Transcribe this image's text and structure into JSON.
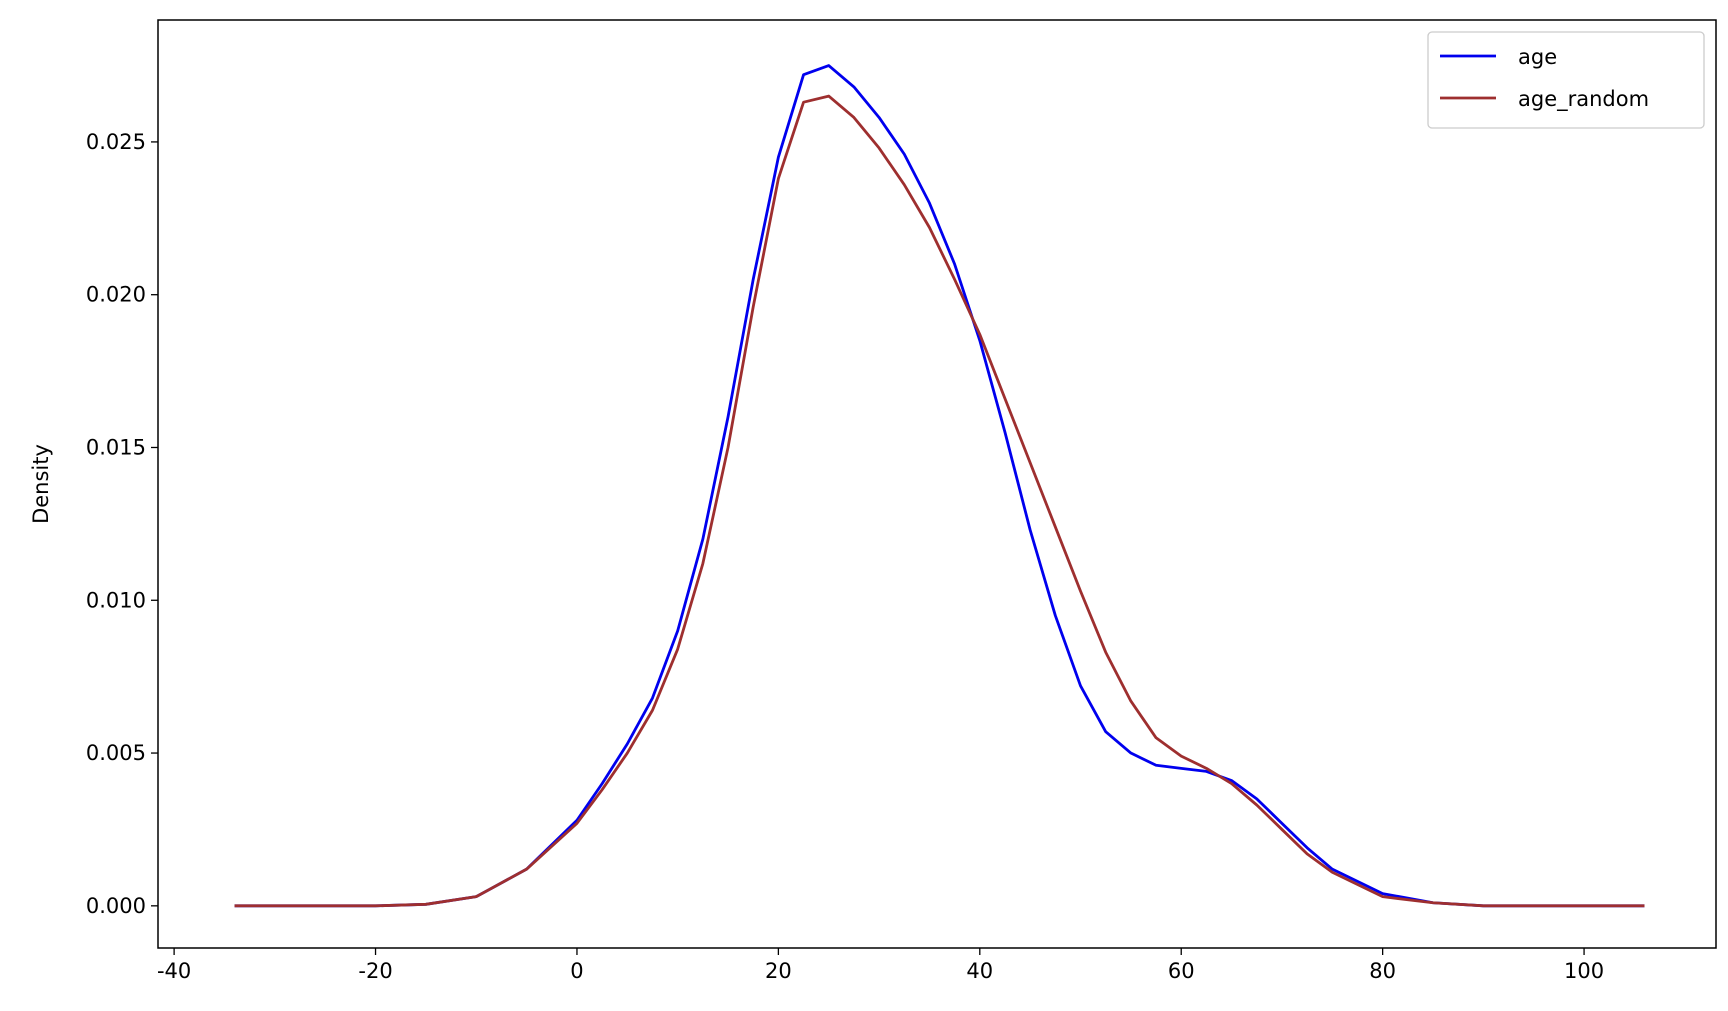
{
  "chart_data": {
    "type": "line",
    "ylabel": "Density",
    "x": [
      -34,
      -30,
      -25,
      -20,
      -15,
      -10,
      -5,
      0,
      2.5,
      5,
      7.5,
      10,
      12.5,
      15,
      17.5,
      20,
      22.5,
      25,
      27.5,
      30,
      32.5,
      35,
      37.5,
      40,
      42.5,
      45,
      47.5,
      50,
      52.5,
      55,
      57.5,
      60,
      62.5,
      65,
      67.5,
      70,
      72.5,
      75,
      80,
      85,
      90,
      95,
      100,
      106
    ],
    "series": [
      {
        "name": "age",
        "color": "#0000ee",
        "values": [
          0,
          0,
          0,
          0,
          5e-05,
          0.0003,
          0.0012,
          0.0028,
          0.004,
          0.0053,
          0.0068,
          0.009,
          0.012,
          0.016,
          0.0205,
          0.0245,
          0.0272,
          0.0275,
          0.0268,
          0.0258,
          0.0246,
          0.023,
          0.021,
          0.0185,
          0.0155,
          0.0123,
          0.0095,
          0.0072,
          0.0057,
          0.005,
          0.0046,
          0.0045,
          0.0044,
          0.0041,
          0.0035,
          0.0027,
          0.0019,
          0.0012,
          0.0004,
          0.0001,
          0,
          0,
          0,
          0
        ]
      },
      {
        "name": "age_random",
        "color": "#9e2f2f",
        "values": [
          0,
          0,
          0,
          0,
          5e-05,
          0.0003,
          0.0012,
          0.0027,
          0.0038,
          0.005,
          0.0064,
          0.0084,
          0.0112,
          0.015,
          0.0196,
          0.0238,
          0.0263,
          0.0265,
          0.0258,
          0.0248,
          0.0236,
          0.0222,
          0.0205,
          0.0187,
          0.0166,
          0.0145,
          0.0124,
          0.0103,
          0.0083,
          0.0067,
          0.0055,
          0.0049,
          0.0045,
          0.004,
          0.0033,
          0.0025,
          0.0017,
          0.0011,
          0.0003,
          0.0001,
          0,
          0,
          0,
          0
        ]
      }
    ],
    "xlim": [
      -41.6,
      113.1
    ],
    "ylim": [
      -0.00138,
      0.02899
    ],
    "xticks": [
      -40,
      -20,
      0,
      20,
      40,
      60,
      80,
      100
    ],
    "yticks": [
      {
        "value": 0,
        "label": "0.000"
      },
      {
        "value": 0.005,
        "label": "0.005"
      },
      {
        "value": 0.01,
        "label": "0.010"
      },
      {
        "value": 0.015,
        "label": "0.015"
      },
      {
        "value": 0.02,
        "label": "0.020"
      },
      {
        "value": 0.025,
        "label": "0.025"
      }
    ],
    "legend": "upper right"
  }
}
